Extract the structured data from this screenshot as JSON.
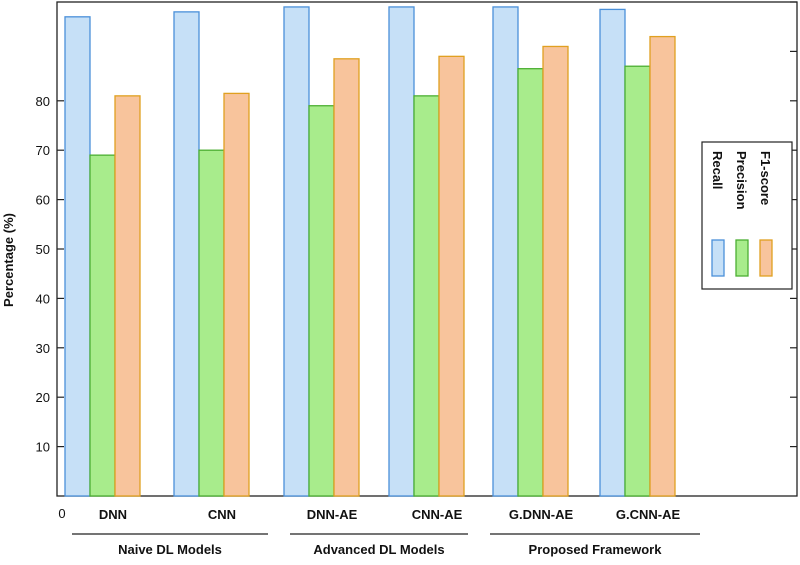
{
  "chart_data": {
    "type": "bar",
    "ylabel": "Percentage (%)",
    "ylim": [
      0,
      100
    ],
    "yticks": [
      "10",
      "20",
      "30",
      "40",
      "50",
      "60",
      "70",
      "80"
    ],
    "origin_label": "0",
    "categories": [
      "DNN",
      "CNN",
      "DNN-AE",
      "CNN-AE",
      "G.DNN-AE",
      "G.CNN-AE"
    ],
    "groups": [
      {
        "label": "Naive DL Models",
        "categories": [
          "DNN",
          "CNN"
        ]
      },
      {
        "label": "Advanced DL Models",
        "categories": [
          "DNN-AE",
          "CNN-AE"
        ]
      },
      {
        "label": "Proposed Framework",
        "categories": [
          "G.DNN-AE",
          "G.CNN-AE"
        ]
      }
    ],
    "series": [
      {
        "name": "Recall",
        "values": [
          97,
          98,
          99,
          99,
          99,
          98.5
        ],
        "fill": "#c6e0f7",
        "stroke": "#4a90d9"
      },
      {
        "name": "Precision",
        "values": [
          69,
          70,
          79,
          81,
          86.5,
          87
        ],
        "fill": "#a8ec8c",
        "stroke": "#4caf32"
      },
      {
        "name": "F1-score",
        "values": [
          81,
          81.5,
          88.5,
          89,
          91,
          93
        ],
        "fill": "#f8c49c",
        "stroke": "#e0a020"
      }
    ],
    "legend_position": "right",
    "grid": false
  }
}
